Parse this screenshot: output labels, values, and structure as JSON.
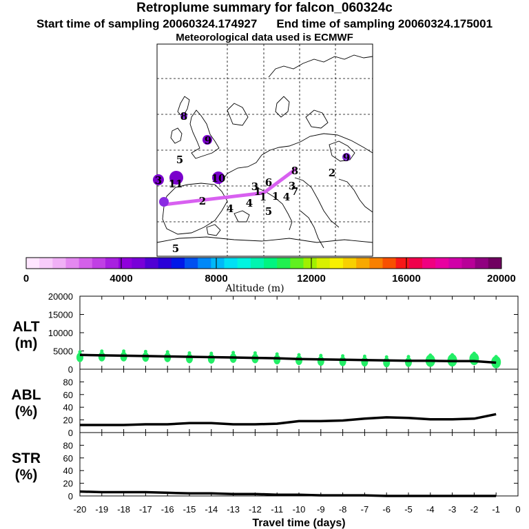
{
  "header": {
    "title": "Retroplume summary for falcon_060324c",
    "start_label": "Start time of sampling 20060324.174927",
    "end_label": "End time of sampling 20060324.175001",
    "met_label": "Meteorological data used is ECMWF"
  },
  "map": {
    "labels": [
      {
        "text": "8",
        "c": "#8a2be2"
      },
      {
        "text": "9",
        "c": "#7a00cc"
      },
      {
        "text": "5",
        "c": "#8a2be2"
      },
      {
        "text": "10",
        "c": "#9400d3"
      },
      {
        "text": "3",
        "c": "#8a2be2"
      },
      {
        "text": "11",
        "c": "#9400d3"
      },
      {
        "text": "4",
        "c": "#9400d3"
      },
      {
        "text": "2",
        "c": "#7a00cc"
      },
      {
        "text": "4",
        "c": "#d070f0"
      },
      {
        "text": "1",
        "c": "#d070f0"
      },
      {
        "text": "3",
        "c": "#d070f0"
      },
      {
        "text": "6",
        "c": "#d070f0"
      },
      {
        "text": "1",
        "c": "#d070f0"
      },
      {
        "text": "1",
        "c": "#d070f0"
      },
      {
        "text": "4",
        "c": "#d070f0"
      },
      {
        "text": "5",
        "c": "#d070f0"
      },
      {
        "text": "8",
        "c": "#d070f0"
      },
      {
        "text": "3",
        "c": "#d070f0"
      },
      {
        "text": "7",
        "c": "#d070f0"
      },
      {
        "text": "2",
        "c": "#d070f0"
      },
      {
        "text": "9",
        "c": "#8a2be2"
      },
      {
        "text": "5",
        "c": "#d070f0"
      }
    ]
  },
  "colorbar": {
    "label": "Altitude (m)",
    "ticks": [
      "0",
      "4000",
      "8000",
      "12000",
      "16000",
      "20000"
    ],
    "min": 0,
    "max": 20000,
    "colors": [
      "#ffe6ff",
      "#f8ccfa",
      "#f0b0f6",
      "#e488f0",
      "#d460ea",
      "#c040e4",
      "#a820e0",
      "#9000dc",
      "#7800d8",
      "#5000d4",
      "#2a00d8",
      "#0018e8",
      "#0050f0",
      "#0088f8",
      "#00b8f8",
      "#00e0f4",
      "#00f4e0",
      "#00f4b0",
      "#00f480",
      "#20f050",
      "#60f020",
      "#a0f000",
      "#d8f000",
      "#f8f000",
      "#f8d000",
      "#f8a800",
      "#f88000",
      "#f85000",
      "#f81818",
      "#f0004c",
      "#f00080",
      "#e800a0",
      "#d000a8",
      "#b80098",
      "#900080",
      "#700060"
    ]
  },
  "chart_data": [
    {
      "type": "line",
      "panel": "ALT",
      "ylabel": "ALT (m)",
      "ylim": [
        0,
        20000
      ],
      "yticks": [
        0,
        5000,
        10000,
        15000,
        20000
      ],
      "x": [
        -20,
        -19,
        -18,
        -17,
        -16,
        -15,
        -14,
        -13,
        -12,
        -11,
        -10,
        -9,
        -8,
        -7,
        -6,
        -5,
        -4,
        -3,
        -2,
        -1
      ],
      "series": [
        {
          "name": "median altitude",
          "values": [
            3900,
            3800,
            3700,
            3600,
            3500,
            3400,
            3300,
            3200,
            3100,
            3000,
            2800,
            2700,
            2600,
            2500,
            2400,
            2300,
            2300,
            2200,
            2200,
            1800
          ]
        },
        {
          "name": "cluster altitude",
          "values": [
            3800,
            4000,
            4000,
            3900,
            3800,
            3500,
            3400,
            3600,
            3500,
            3200,
            3000,
            2800,
            2700,
            2600,
            2400,
            2500,
            2900,
            3000,
            3400,
            2500
          ]
        }
      ]
    },
    {
      "type": "line",
      "panel": "ABL",
      "ylabel": "ABL (%)",
      "ylim": [
        0,
        100
      ],
      "yticks": [
        0,
        20,
        40,
        60,
        80
      ],
      "x": [
        -20,
        -19,
        -18,
        -17,
        -16,
        -15,
        -14,
        -13,
        -12,
        -11,
        -10,
        -9,
        -8,
        -7,
        -6,
        -5,
        -4,
        -3,
        -2,
        -1
      ],
      "series": [
        {
          "name": "ABL fraction",
          "values": [
            12,
            12,
            12,
            13,
            13,
            15,
            15,
            13,
            13,
            14,
            18,
            18,
            19,
            22,
            24,
            23,
            21,
            21,
            22,
            29
          ]
        }
      ]
    },
    {
      "type": "line",
      "panel": "STR",
      "ylabel": "STR (%)",
      "ylim": [
        0,
        100
      ],
      "yticks": [
        0,
        20,
        40,
        60,
        80
      ],
      "x": [
        -20,
        -19,
        -18,
        -17,
        -16,
        -15,
        -14,
        -13,
        -12,
        -11,
        -10,
        -9,
        -8,
        -7,
        -6,
        -5,
        -4,
        -3,
        -2,
        -1
      ],
      "xlabel": "Travel time (days)",
      "xticks": [
        "-20",
        "-19",
        "-18",
        "-17",
        "-16",
        "-15",
        "-14",
        "-13",
        "-12",
        "-11",
        "-10",
        "-9",
        "-8",
        "-7",
        "-6",
        "-5",
        "-4",
        "-3",
        "-2",
        "-1",
        "0"
      ],
      "series": [
        {
          "name": "stratospheric fraction",
          "values": [
            7,
            6,
            6,
            6,
            5,
            4,
            4,
            3,
            3,
            2,
            2,
            1,
            1,
            1,
            0,
            0,
            0,
            0,
            0,
            0
          ]
        }
      ]
    }
  ]
}
